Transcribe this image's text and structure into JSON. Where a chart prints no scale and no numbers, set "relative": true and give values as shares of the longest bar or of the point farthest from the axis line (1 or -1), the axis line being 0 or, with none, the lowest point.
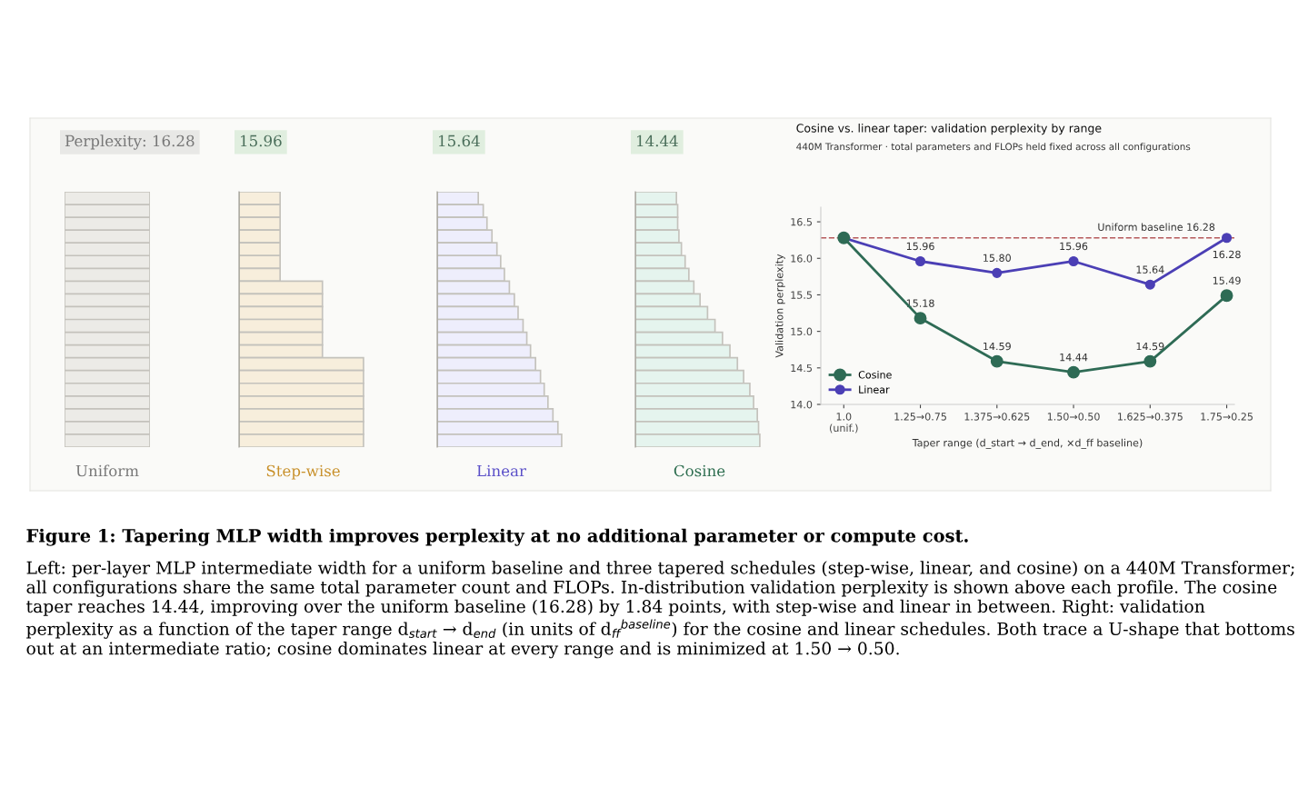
{
  "chart_data": [
    {
      "type": "other",
      "title": "Perplexity: 16.28",
      "xlabel": "Uniform"
    },
    {
      "type": "bar",
      "orientation": "horizontal",
      "relative": true,
      "tick_labels": false,
      "title": "15.96",
      "xlabel": "Step-wise",
      "color": "#f7eedc",
      "categories": [
        null,
        null,
        null,
        null,
        null,
        null,
        null,
        null,
        null,
        null,
        null,
        null,
        null,
        null,
        null,
        null,
        null,
        null,
        null,
        null
      ],
      "values": [
        0.33,
        0.33,
        0.33,
        0.33,
        0.33,
        0.33,
        0.33,
        0.67,
        0.67,
        0.67,
        0.67,
        0.67,
        0.67,
        1,
        1,
        1,
        1,
        1,
        1,
        1
      ]
    },
    {
      "type": "bar",
      "orientation": "horizontal",
      "relative": true,
      "tick_labels": false,
      "title": "15.64",
      "xlabel": "Linear",
      "color": "#eeeefc",
      "categories": [
        null,
        null,
        null,
        null,
        null,
        null,
        null,
        null,
        null,
        null,
        null,
        null,
        null,
        null,
        null,
        null,
        null,
        null,
        null,
        null
      ],
      "values": [
        0.33,
        0.37,
        0.4,
        0.44,
        0.48,
        0.51,
        0.54,
        0.58,
        0.62,
        0.65,
        0.69,
        0.72,
        0.75,
        0.79,
        0.83,
        0.86,
        0.89,
        0.93,
        0.97,
        1
      ]
    },
    {
      "type": "bar",
      "orientation": "horizontal",
      "relative": true,
      "tick_labels": false,
      "title": "14.44",
      "xlabel": "Cosine",
      "color": "#e5f4ee",
      "categories": [
        null,
        null,
        null,
        null,
        null,
        null,
        null,
        null,
        null,
        null,
        null,
        null,
        null,
        null,
        null,
        null,
        null,
        null,
        null,
        null
      ],
      "values": [
        0.33,
        0.34,
        0.34,
        0.35,
        0.37,
        0.4,
        0.43,
        0.47,
        0.52,
        0.58,
        0.64,
        0.7,
        0.76,
        0.82,
        0.87,
        0.92,
        0.95,
        0.98,
        0.99,
        1
      ]
    },
    {
      "type": "line",
      "title": "Cosine vs. linear taper: validation perplexity by range",
      "subtitle": "440M Transformer · total parameters and FLOPs held fixed across all configurations",
      "xlabel": "Taper range (d_start → d_end, ×d_ff baseline)",
      "ylabel": "Validation perplexity",
      "categories": [
        "1.0\n(unif.)",
        "1.25→0.75",
        "1.375→0.625",
        "1.50→0.50",
        "1.625→0.375",
        "1.75→0.25"
      ],
      "ylim": [
        14.0,
        16.7
      ],
      "yticks": [
        {
          "value": 14.0,
          "label": "14.0"
        },
        14.5,
        {
          "value": 15.0,
          "label": "15.0"
        },
        15.5,
        {
          "value": 16.0,
          "label": "16.0"
        },
        16.5
      ],
      "marker": "circle",
      "grid": false,
      "legend": "bottom left",
      "series": [
        {
          "name": "Cosine",
          "color": "#2e6b55",
          "values": [
            16.28,
            15.18,
            14.59,
            14.44,
            14.59,
            15.49
          ],
          "value_labels": [
            null,
            "15.18",
            "14.59",
            "14.44",
            "14.59",
            "15.49"
          ]
        },
        {
          "name": "Linear",
          "color": "#4b3fb5",
          "values": [
            16.28,
            15.96,
            15.8,
            15.96,
            15.64,
            16.28
          ],
          "value_labels": [
            null,
            "15.96",
            "15.80",
            "15.96",
            "15.64",
            "16.28"
          ]
        }
      ],
      "ref_lines": [
        {
          "axis": "y",
          "value": 16.28,
          "label": "Uniform baseline 16.28",
          "color": "#b5585a",
          "line_style": "dashed"
        }
      ],
      "annotations": [
        "Figure 1: Tapering MLP width improves perplexity at no additional parameter or compute cost.",
        "Left: per-layer MLP intermediate width for a uniform baseline and three tapered schedules (step-wise, linear, and cosine) on a 440M Transformer; all configurations share the same total parameter count and FLOPs. In-distribution validation perplexity is shown above each profile. The cosine taper reaches 14.44, improving over the uniform baseline (16.28) by 1.84 points, with step-wise and linear in between. Right: validation perplexity as a function of the taper range d$_{start}$ → d$_{end}$ (in units of d$_{ff}$$^{baseline}$) for the cosine and linear schedules. Both trace a U-shape that bottoms out at an intermediate ratio; cosine dominates linear at every range and is minimized at 1.50 → 0.50."
      ]
    }
  ]
}
